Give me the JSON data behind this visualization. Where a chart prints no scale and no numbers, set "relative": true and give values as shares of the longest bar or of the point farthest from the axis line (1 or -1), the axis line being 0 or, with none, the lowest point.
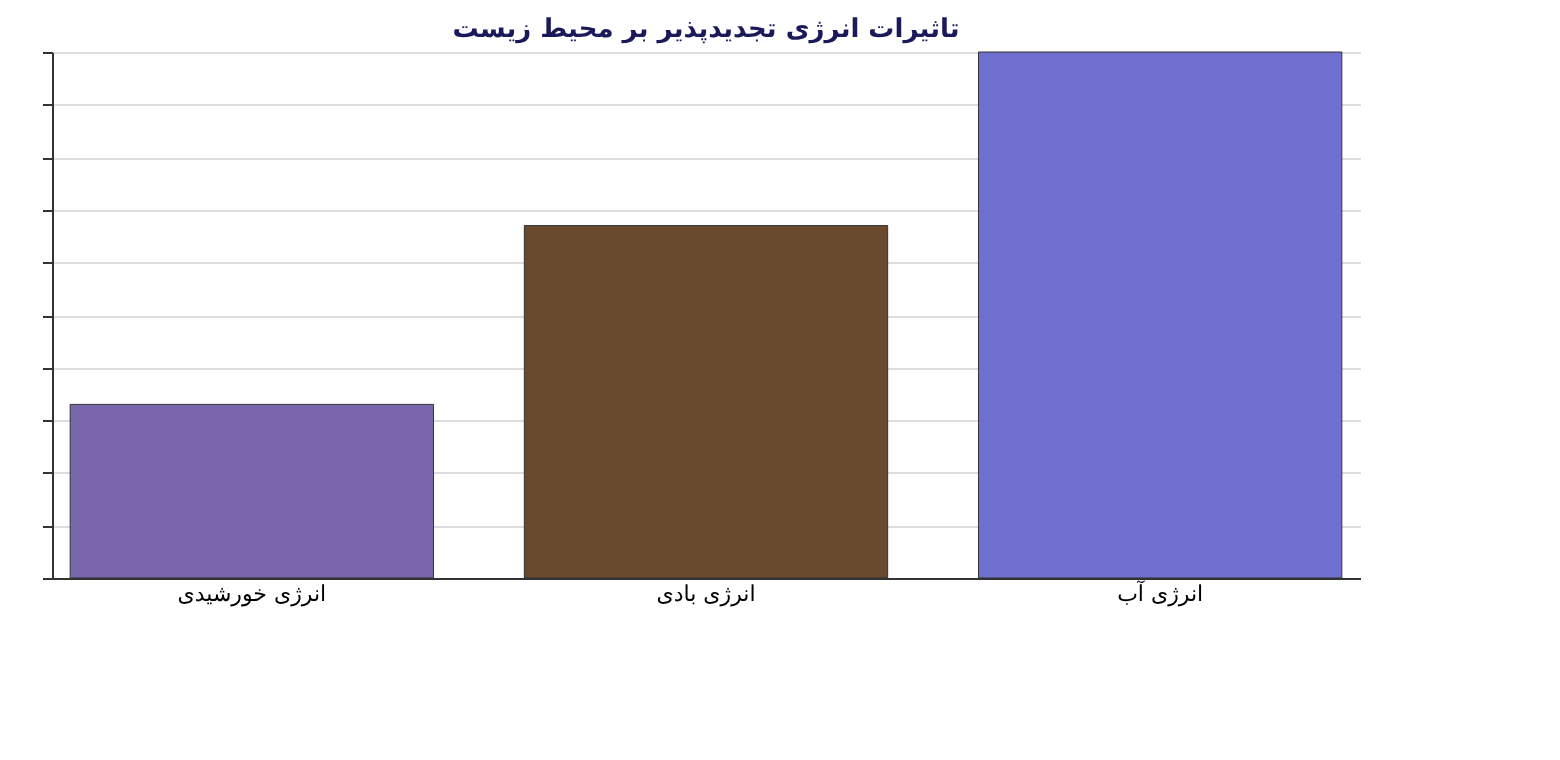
{
  "chart_data": {
    "type": "bar",
    "title": "تاثیرات انرژی تجدیدپذیر بر محیط زیست",
    "categories": [
      "انرژی خورشیدی",
      "انرژی بادی",
      "انرژی آب"
    ],
    "values": [
      0.33,
      0.67,
      1
    ],
    "colors": [
      "#7a66aa",
      "#6a4a2e",
      "#6f6fd0"
    ],
    "relative": true,
    "grid": "y",
    "legend": false
  }
}
